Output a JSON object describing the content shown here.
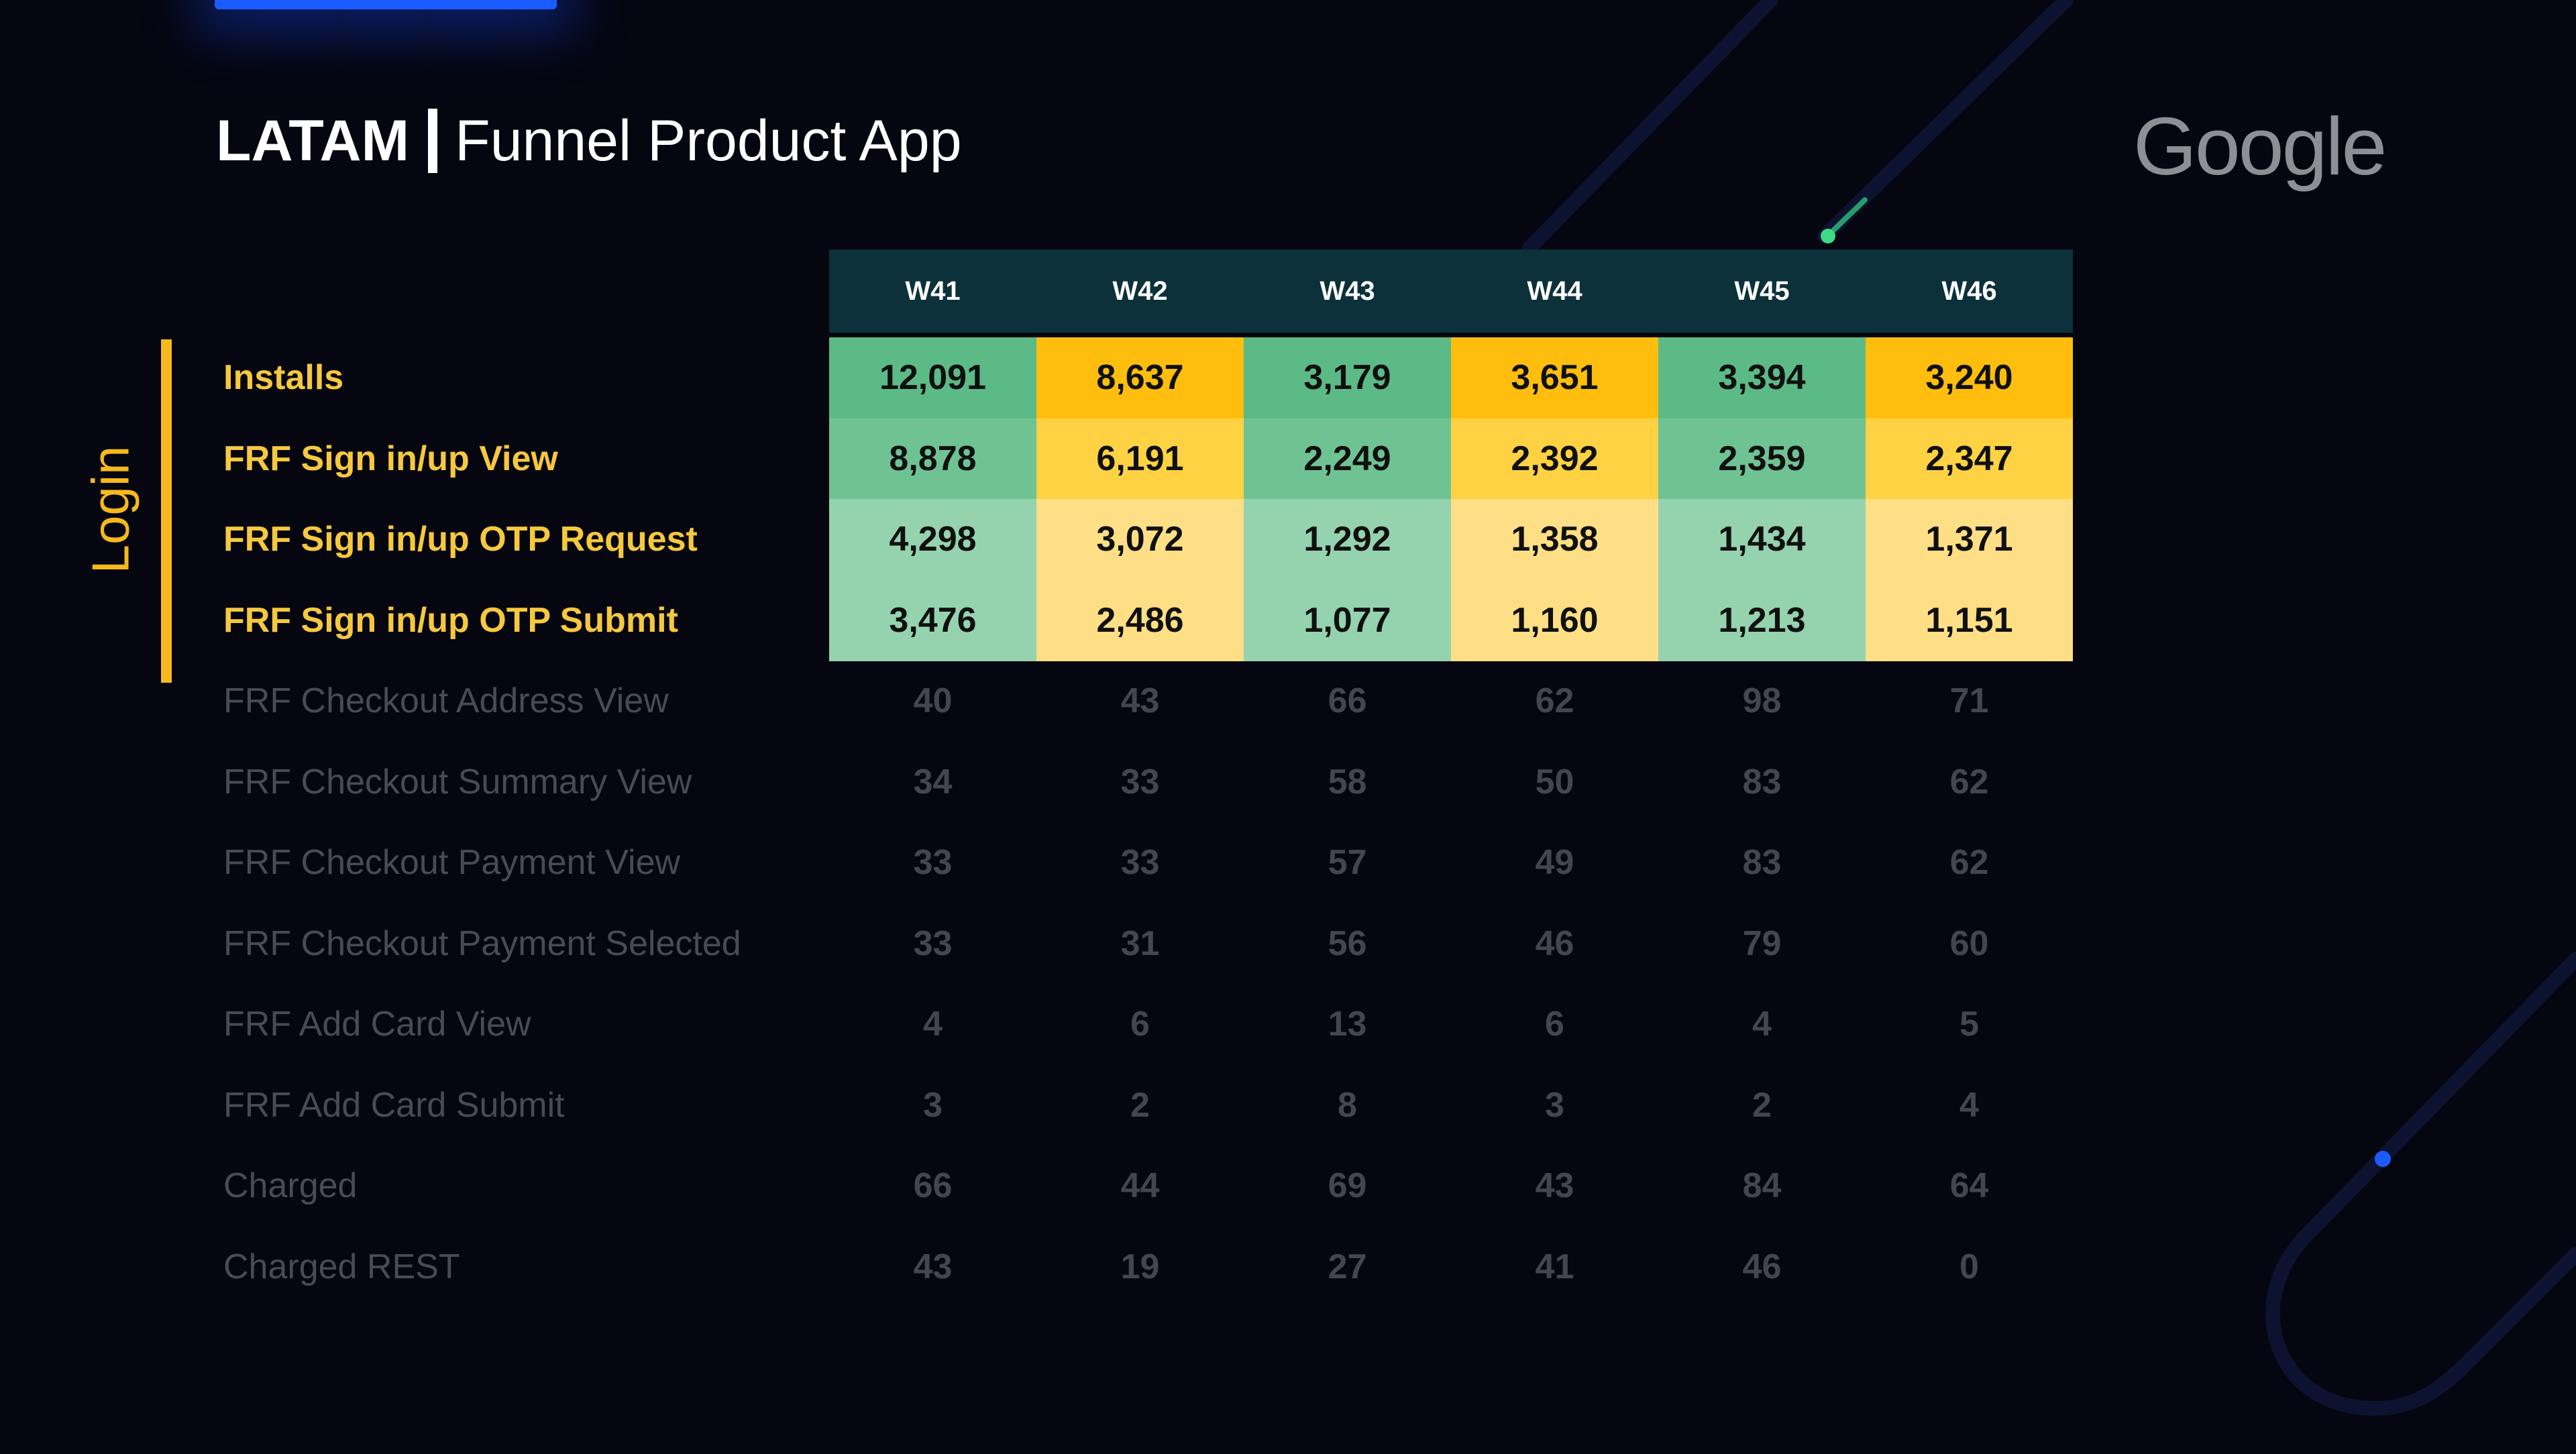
{
  "header": {
    "title_bold": "LATAM",
    "title_rest": "Funnel Product App",
    "brand_logo": "Google"
  },
  "section": {
    "label": "Login"
  },
  "colors": {
    "background": "#05060f",
    "header_bg": "#0c313a",
    "accent_yellow": "#f6b91d",
    "label_highlight": "#f6c83e",
    "label_dim": "#4a4b52",
    "green_shades": [
      "#5cba87",
      "#6fc393",
      "#95d3ae"
    ],
    "yellow_shades": [
      "#ffbe0d",
      "#ffd243",
      "#ffdf85"
    ]
  },
  "chart_data": {
    "type": "table",
    "columns": [
      "W41",
      "W42",
      "W43",
      "W44",
      "W45",
      "W46"
    ],
    "rows": [
      {
        "label": "Installs",
        "values": [
          "12,091",
          "8,637",
          "3,179",
          "3,651",
          "3,394",
          "3,240"
        ],
        "highlight": true,
        "shade": 0
      },
      {
        "label": "FRF Sign in/up View",
        "values": [
          "8,878",
          "6,191",
          "2,249",
          "2,392",
          "2,359",
          "2,347"
        ],
        "highlight": true,
        "shade": 1
      },
      {
        "label": "FRF Sign in/up OTP Request",
        "values": [
          "4,298",
          "3,072",
          "1,292",
          "1,358",
          "1,434",
          "1,371"
        ],
        "highlight": true,
        "shade": 2
      },
      {
        "label": "FRF Sign in/up OTP Submit",
        "values": [
          "3,476",
          "2,486",
          "1,077",
          "1,160",
          "1,213",
          "1,151"
        ],
        "highlight": true,
        "shade": 2
      },
      {
        "label": "FRF Checkout Address View",
        "values": [
          "40",
          "43",
          "66",
          "62",
          "98",
          "71"
        ],
        "highlight": false
      },
      {
        "label": "FRF Checkout Summary View",
        "values": [
          "34",
          "33",
          "58",
          "50",
          "83",
          "62"
        ],
        "highlight": false
      },
      {
        "label": "FRF Checkout Payment View",
        "values": [
          "33",
          "33",
          "57",
          "49",
          "83",
          "62"
        ],
        "highlight": false
      },
      {
        "label": "FRF Checkout Payment Selected",
        "values": [
          "33",
          "31",
          "56",
          "46",
          "79",
          "60"
        ],
        "highlight": false
      },
      {
        "label": "FRF Add Card View",
        "values": [
          "4",
          "6",
          "13",
          "6",
          "4",
          "5"
        ],
        "highlight": false
      },
      {
        "label": "FRF Add Card Submit",
        "values": [
          "3",
          "2",
          "8",
          "3",
          "2",
          "4"
        ],
        "highlight": false
      },
      {
        "label": "Charged",
        "values": [
          "66",
          "44",
          "69",
          "43",
          "84",
          "64"
        ],
        "highlight": false
      },
      {
        "label": "Charged REST",
        "values": [
          "43",
          "19",
          "27",
          "41",
          "46",
          "0"
        ],
        "highlight": false
      }
    ]
  }
}
